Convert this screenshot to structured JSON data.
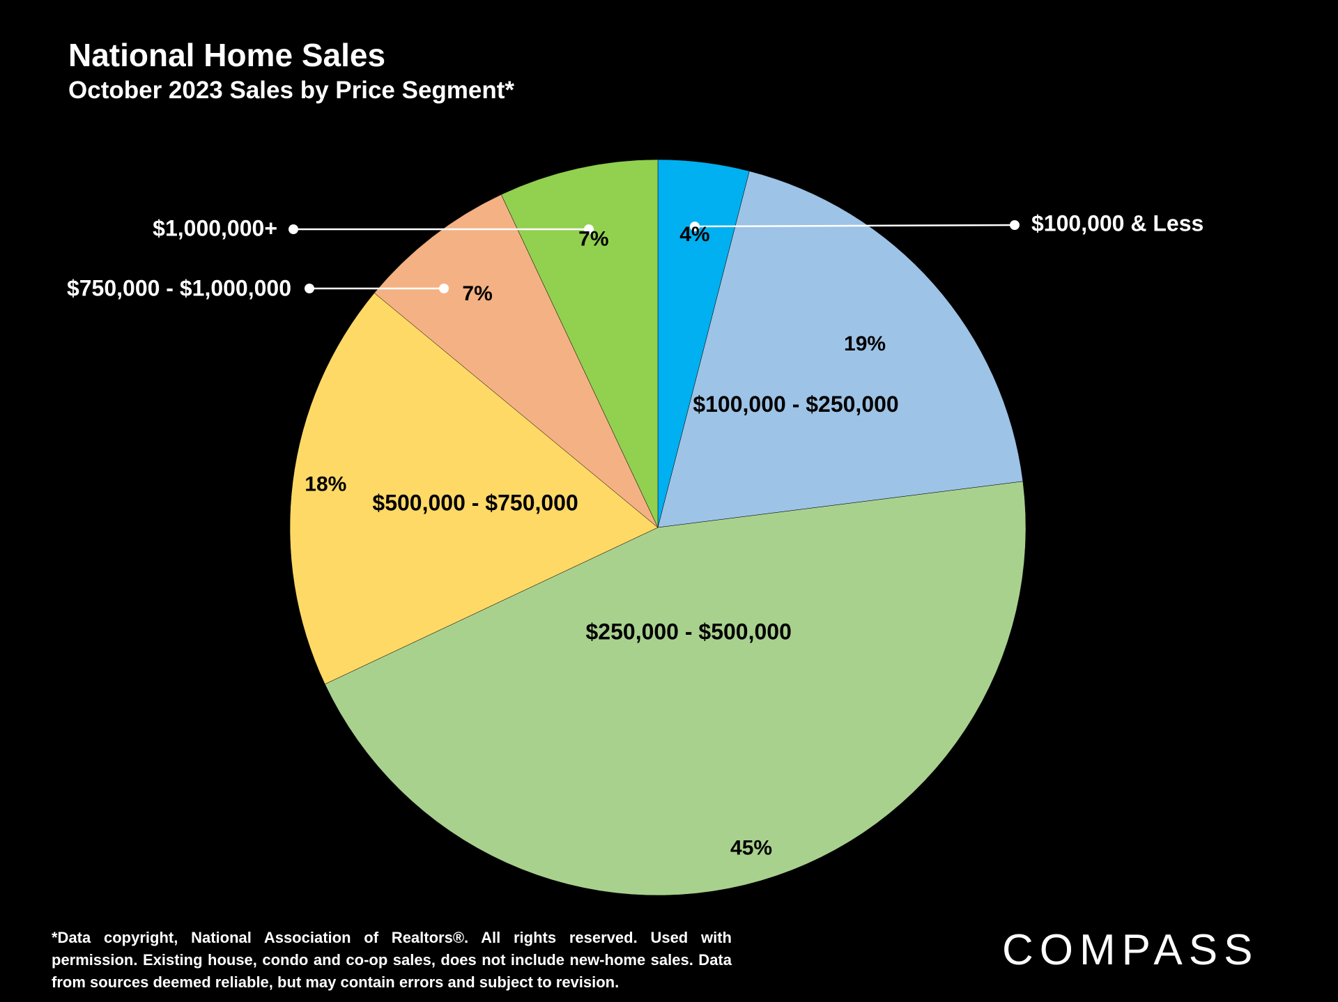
{
  "header": {
    "title": "National Home Sales",
    "subtitle": "October 2023 Sales by Price Segment*"
  },
  "chart_data": {
    "type": "pie",
    "title": "National Home Sales",
    "subtitle": "October 2023 Sales by Price Segment*",
    "start_angle": "12 o'clock",
    "direction": "clockwise",
    "slices": [
      {
        "label": "$100,000 & Less",
        "value": 4,
        "value_label": "4%",
        "color": "#00B0F0"
      },
      {
        "label": "$100,000 - $250,000",
        "value": 19,
        "value_label": "19%",
        "color": "#9DC3E6"
      },
      {
        "label": "$250,000 - $500,000",
        "value": 45,
        "value_label": "45%",
        "color": "#A9D18E"
      },
      {
        "label": "$500,000 - $750,000",
        "value": 18,
        "value_label": "18%",
        "color": "#FFD966"
      },
      {
        "label": "$750,000 - $1,000,000",
        "value": 7,
        "value_label": "7%",
        "color": "#F4B183"
      },
      {
        "label": "$1,000,000+",
        "value": 7,
        "value_label": "7%",
        "color": "#92D050"
      }
    ]
  },
  "footnote": "*Data copyright, National Association of Realtors®. All rights reserved. Used with permission. Existing house, condo and co-op sales, does not include new-home sales. Data from sources deemed reliable, but may contain errors and subject to revision.",
  "logo_text": "COMPASS"
}
